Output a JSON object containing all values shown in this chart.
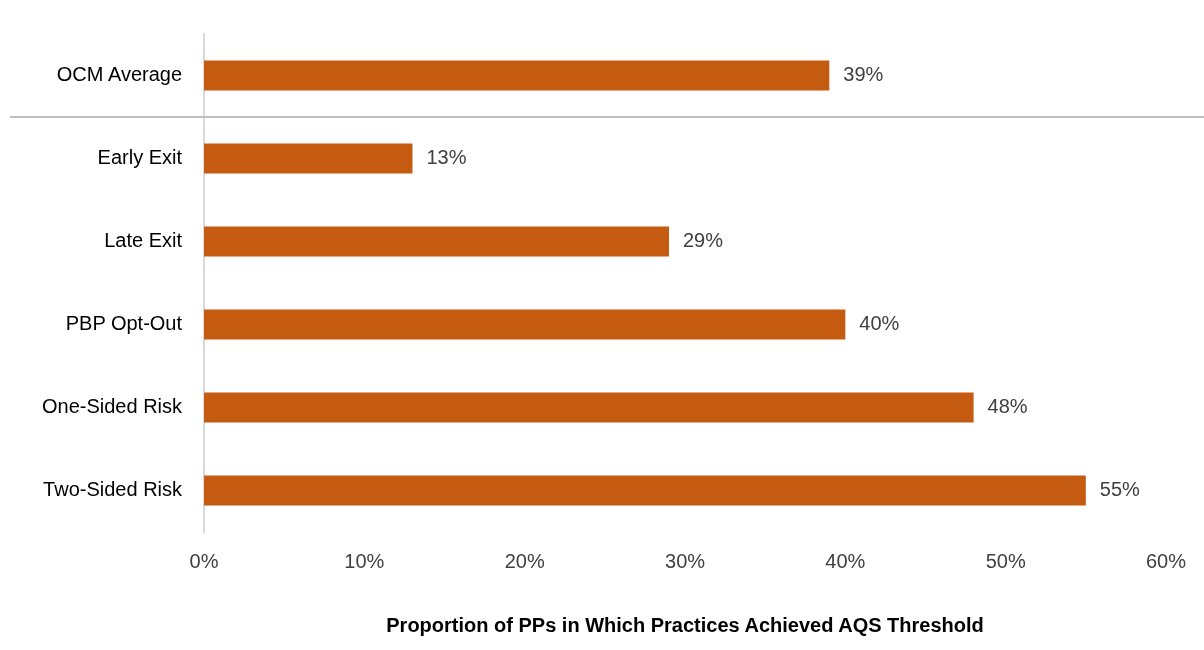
{
  "chart_data": {
    "type": "bar",
    "orientation": "horizontal",
    "xlabel": "Proportion of PPs in Which Practices Achieved AQS Threshold",
    "categories": [
      "OCM Average",
      "Early Exit",
      "Late Exit",
      "PBP Opt-Out",
      "One-Sided Risk",
      "Two-Sided Risk"
    ],
    "values": [
      39,
      13,
      29,
      40,
      48,
      55
    ],
    "value_labels": [
      "39%",
      "13%",
      "29%",
      "40%",
      "48%",
      "55%"
    ],
    "color": "#c55a11",
    "xlim": [
      0,
      60
    ],
    "xticks": [
      {
        "value": 0,
        "label": "0%"
      },
      {
        "value": 10,
        "label": "10%"
      },
      {
        "value": 20,
        "label": "20%"
      },
      {
        "value": 30,
        "label": "30%"
      },
      {
        "value": 40,
        "label": "40%"
      },
      {
        "value": 50,
        "label": "50%"
      },
      {
        "value": 60,
        "label": "60%"
      }
    ],
    "grid": false,
    "legend": false
  }
}
